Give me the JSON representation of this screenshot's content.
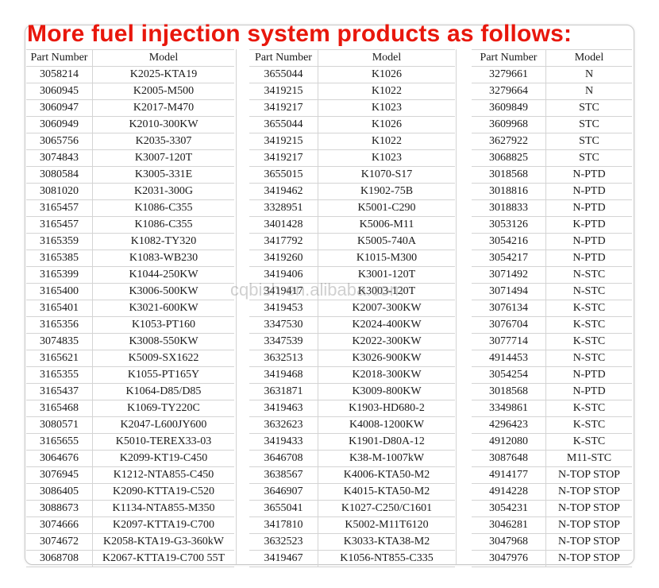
{
  "title": "More fuel injection system products as follows:",
  "watermark": "cqbish.en.alibaba.com",
  "colors": {
    "title": "#e8170c",
    "text": "#1a1a1a",
    "grid": "#d4d4d4"
  },
  "tables": [
    {
      "headers": [
        "Part Number",
        "Model"
      ],
      "rows": [
        [
          "3058214",
          "K2025-KTA19"
        ],
        [
          "3060945",
          "K2005-M500"
        ],
        [
          "3060947",
          "K2017-M470"
        ],
        [
          "3060949",
          "K2010-300KW"
        ],
        [
          "3065756",
          "K2035-3307"
        ],
        [
          "3074843",
          "K3007-120T"
        ],
        [
          "3080584",
          "K3005-331E"
        ],
        [
          "3081020",
          "K2031-300G"
        ],
        [
          "3165457",
          "K1086-C355"
        ],
        [
          "3165457",
          "K1086-C355"
        ],
        [
          "3165359",
          "K1082-TY320"
        ],
        [
          "3165385",
          "K1083-WB230"
        ],
        [
          "3165399",
          "K1044-250KW"
        ],
        [
          "3165400",
          "K3006-500KW"
        ],
        [
          "3165401",
          "K3021-600KW"
        ],
        [
          "3165356",
          "K1053-PT160"
        ],
        [
          "3074835",
          "K3008-550KW"
        ],
        [
          "3165621",
          "K5009-SX1622"
        ],
        [
          "3165355",
          "K1055-PT165Y"
        ],
        [
          "3165437",
          "K1064-D85/D85"
        ],
        [
          "3165468",
          "K1069-TY220C"
        ],
        [
          "3080571",
          "K2047-L600JY600"
        ],
        [
          "3165655",
          "K5010-TEREX33-03"
        ],
        [
          "3064676",
          "K2099-KT19-C450"
        ],
        [
          "3076945",
          "K1212-NTA855-C450"
        ],
        [
          "3086405",
          "K2090-KTTA19-C520"
        ],
        [
          "3088673",
          "K1134-NTA855-M350"
        ],
        [
          "3074666",
          "K2097-KTTA19-C700"
        ],
        [
          "3074672",
          "K2058-KTA19-G3-360kW"
        ],
        [
          "3068708",
          "K2067-KTTA19-C700 55T"
        ]
      ]
    },
    {
      "headers": [
        "Part Number",
        "Model"
      ],
      "rows": [
        [
          "3655044",
          "K1026"
        ],
        [
          "3419215",
          "K1022"
        ],
        [
          "3419217",
          "K1023"
        ],
        [
          "3655044",
          "K1026"
        ],
        [
          "3419215",
          "K1022"
        ],
        [
          "3419217",
          "K1023"
        ],
        [
          "3655015",
          "K1070-S17"
        ],
        [
          "3419462",
          "K1902-75B"
        ],
        [
          "3328951",
          "K5001-C290"
        ],
        [
          "3401428",
          "K5006-M11"
        ],
        [
          "3417792",
          "K5005-740A"
        ],
        [
          "3419260",
          "K1015-M300"
        ],
        [
          "3419406",
          "K3001-120T"
        ],
        [
          "3419417",
          "K3003-120T"
        ],
        [
          "3419453",
          "K2007-300KW"
        ],
        [
          "3347530",
          "K2024-400KW"
        ],
        [
          "3347539",
          "K2022-300KW"
        ],
        [
          "3632513",
          "K3026-900KW"
        ],
        [
          "3419468",
          "K2018-300KW"
        ],
        [
          "3631871",
          "K3009-800KW"
        ],
        [
          "3419463",
          "K1903-HD680-2"
        ],
        [
          "3632623",
          "K4008-1200KW"
        ],
        [
          "3419433",
          "K1901-D80A-12"
        ],
        [
          "3646708",
          "K38-M-1007kW"
        ],
        [
          "3638567",
          "K4006-KTA50-M2"
        ],
        [
          "3646907",
          "K4015-KTA50-M2"
        ],
        [
          "3655041",
          "K1027-C250/C1601"
        ],
        [
          "3417810",
          "K5002-M11T6120"
        ],
        [
          "3632523",
          "K3033-KTA38-M2"
        ],
        [
          "3419467",
          "K1056-NT855-C335"
        ]
      ]
    },
    {
      "headers": [
        "Part Number",
        "Model"
      ],
      "rows": [
        [
          "3279661",
          "N"
        ],
        [
          "3279664",
          "N"
        ],
        [
          "3609849",
          "STC"
        ],
        [
          "3609968",
          "STC"
        ],
        [
          "3627922",
          "STC"
        ],
        [
          "3068825",
          "STC"
        ],
        [
          "3018568",
          "N-PTD"
        ],
        [
          "3018816",
          "N-PTD"
        ],
        [
          "3018833",
          "N-PTD"
        ],
        [
          "3053126",
          "K-PTD"
        ],
        [
          "3054216",
          "N-PTD"
        ],
        [
          "3054217",
          "N-PTD"
        ],
        [
          "3071492",
          "N-STC"
        ],
        [
          "3071494",
          "N-STC"
        ],
        [
          "3076134",
          "K-STC"
        ],
        [
          "3076704",
          "K-STC"
        ],
        [
          "3077714",
          "K-STC"
        ],
        [
          "4914453",
          "N-STC"
        ],
        [
          "3054254",
          "N-PTD"
        ],
        [
          "3018568",
          "N-PTD"
        ],
        [
          "3349861",
          "K-STC"
        ],
        [
          "4296423",
          "K-STC"
        ],
        [
          "4912080",
          "K-STC"
        ],
        [
          "3087648",
          "M11-STC"
        ],
        [
          "4914177",
          "N-TOP STOP"
        ],
        [
          "4914228",
          "N-TOP STOP"
        ],
        [
          "3054231",
          "N-TOP STOP"
        ],
        [
          "3046281",
          "N-TOP STOP"
        ],
        [
          "3047968",
          "N-TOP STOP"
        ],
        [
          "3047976",
          "N-TOP STOP"
        ]
      ]
    }
  ]
}
